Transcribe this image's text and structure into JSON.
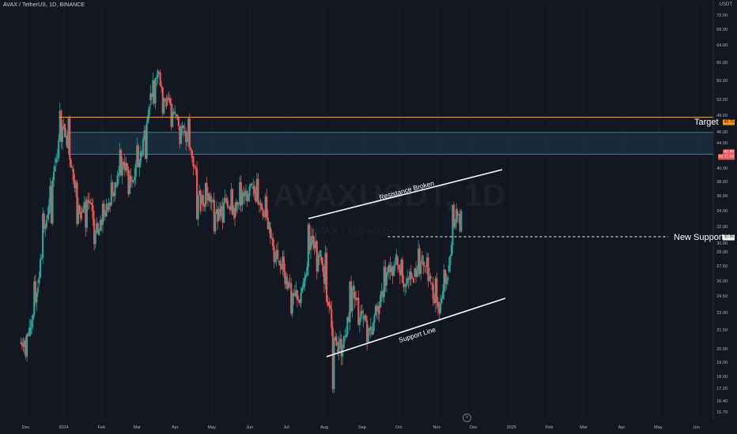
{
  "symbol_label": "AVAX / TetherUS, 1D, BINANCE",
  "currency_label": "USDT",
  "watermark": {
    "ticker": "AVAXUSDT, 1D",
    "name": "AVAX / TetherUS"
  },
  "annotations": {
    "target": "Target",
    "new_support": "New Support",
    "resistance": "Resistance Broken",
    "support_line": "Support Line"
  },
  "price_labels": {
    "target": "48.75",
    "current": "42.90",
    "countdown": "02:11:53",
    "support": "30.85"
  },
  "y_ticks": [
    "72.00",
    "68.00",
    "64.00",
    "60.00",
    "56.00",
    "52.00",
    "49.00",
    "46.00",
    "44.00",
    "40.00",
    "38.00",
    "36.00",
    "34.00",
    "32.00",
    "30.00",
    "29.00",
    "27.50",
    "26.00",
    "24.50",
    "23.00",
    "21.50",
    "20.00",
    "19.00",
    "18.00",
    "17.20",
    "16.40",
    "15.70"
  ],
  "x_ticks": [
    "Dec",
    "2024",
    "Feb",
    "Mar",
    "Apr",
    "May",
    "Jun",
    "Jul",
    "Aug",
    "Sep",
    "Oct",
    "Nov",
    "Dec",
    "2025",
    "Feb",
    "Mar",
    "Apr",
    "May",
    "Jun"
  ],
  "tz_icon": "timezone-icon",
  "colors": {
    "background": "#131722",
    "up": "#26a69a",
    "down": "#ef5350",
    "target_line": "#ff9800",
    "zone_fill": "#1f3a4d",
    "zone_border": "#5b8fa8"
  },
  "chart_data": {
    "type": "candlestick",
    "timeframe": "1D",
    "price_scale": "log",
    "ylim": [
      15.3,
      75
    ],
    "x_range": [
      "Dec 2023",
      "Jun 2025"
    ],
    "ohlc": [
      {
        "date": "2023-11-27",
        "o": 20.5,
        "h": 21.8,
        "l": 19.5,
        "c": 21.2
      },
      {
        "date": "2023-12-05",
        "o": 21.2,
        "h": 26.5,
        "l": 21.0,
        "c": 25.8
      },
      {
        "date": "2023-12-12",
        "o": 25.8,
        "h": 34.0,
        "l": 25.0,
        "c": 33.0
      },
      {
        "date": "2023-12-19",
        "o": 33.0,
        "h": 42.0,
        "l": 32.0,
        "c": 41.0
      },
      {
        "date": "2023-12-26",
        "o": 41.0,
        "h": 50.0,
        "l": 40.0,
        "c": 47.5
      },
      {
        "date": "2024-01-02",
        "o": 47.5,
        "h": 48.8,
        "l": 38.0,
        "c": 40.0
      },
      {
        "date": "2024-01-09",
        "o": 40.0,
        "h": 41.0,
        "l": 32.0,
        "c": 34.0
      },
      {
        "date": "2024-01-16",
        "o": 34.0,
        "h": 37.0,
        "l": 31.5,
        "c": 35.0
      },
      {
        "date": "2024-01-23",
        "o": 35.0,
        "h": 36.0,
        "l": 30.0,
        "c": 31.0
      },
      {
        "date": "2024-01-30",
        "o": 31.0,
        "h": 35.0,
        "l": 30.5,
        "c": 34.5
      },
      {
        "date": "2024-02-06",
        "o": 34.5,
        "h": 38.0,
        "l": 33.0,
        "c": 37.5
      },
      {
        "date": "2024-02-13",
        "o": 37.5,
        "h": 43.0,
        "l": 37.0,
        "c": 41.0
      },
      {
        "date": "2024-02-20",
        "o": 41.0,
        "h": 42.5,
        "l": 36.0,
        "c": 38.0
      },
      {
        "date": "2024-02-27",
        "o": 38.0,
        "h": 45.0,
        "l": 37.5,
        "c": 42.0
      },
      {
        "date": "2024-03-05",
        "o": 42.0,
        "h": 54.0,
        "l": 41.0,
        "c": 52.0
      },
      {
        "date": "2024-03-12",
        "o": 52.0,
        "h": 65.0,
        "l": 50.0,
        "c": 58.0
      },
      {
        "date": "2024-03-19",
        "o": 58.0,
        "h": 60.0,
        "l": 48.0,
        "c": 52.0
      },
      {
        "date": "2024-03-26",
        "o": 52.0,
        "h": 54.0,
        "l": 47.0,
        "c": 49.0
      },
      {
        "date": "2024-04-02",
        "o": 49.0,
        "h": 50.0,
        "l": 44.0,
        "c": 46.0
      },
      {
        "date": "2024-04-09",
        "o": 46.0,
        "h": 48.5,
        "l": 40.0,
        "c": 42.0
      },
      {
        "date": "2024-04-16",
        "o": 42.0,
        "h": 43.0,
        "l": 33.0,
        "c": 35.0
      },
      {
        "date": "2024-04-23",
        "o": 35.0,
        "h": 38.0,
        "l": 33.0,
        "c": 36.0
      },
      {
        "date": "2024-04-30",
        "o": 36.0,
        "h": 37.0,
        "l": 31.5,
        "c": 33.0
      },
      {
        "date": "2024-05-07",
        "o": 33.0,
        "h": 36.0,
        "l": 32.0,
        "c": 35.5
      },
      {
        "date": "2024-05-14",
        "o": 35.5,
        "h": 38.0,
        "l": 33.0,
        "c": 34.0
      },
      {
        "date": "2024-05-21",
        "o": 34.0,
        "h": 39.0,
        "l": 33.5,
        "c": 36.0
      },
      {
        "date": "2024-05-28",
        "o": 36.0,
        "h": 42.0,
        "l": 35.0,
        "c": 37.0
      },
      {
        "date": "2024-06-04",
        "o": 37.0,
        "h": 38.5,
        "l": 34.0,
        "c": 35.0
      },
      {
        "date": "2024-06-11",
        "o": 35.0,
        "h": 36.0,
        "l": 31.0,
        "c": 32.0
      },
      {
        "date": "2024-06-18",
        "o": 32.0,
        "h": 32.5,
        "l": 27.5,
        "c": 28.0
      },
      {
        "date": "2024-06-25",
        "o": 28.0,
        "h": 29.0,
        "l": 25.0,
        "c": 26.0
      },
      {
        "date": "2024-07-02",
        "o": 26.0,
        "h": 27.0,
        "l": 23.0,
        "c": 24.5
      },
      {
        "date": "2024-07-09",
        "o": 24.5,
        "h": 26.0,
        "l": 23.5,
        "c": 25.5
      },
      {
        "date": "2024-07-16",
        "o": 25.5,
        "h": 33.0,
        "l": 25.0,
        "c": 31.0
      },
      {
        "date": "2024-07-23",
        "o": 31.0,
        "h": 32.0,
        "l": 27.0,
        "c": 28.5
      },
      {
        "date": "2024-07-30",
        "o": 28.5,
        "h": 29.0,
        "l": 23.0,
        "c": 24.0
      },
      {
        "date": "2024-08-05",
        "o": 24.0,
        "h": 24.5,
        "l": 17.2,
        "c": 20.0
      },
      {
        "date": "2024-08-12",
        "o": 20.0,
        "h": 22.0,
        "l": 19.5,
        "c": 21.0
      },
      {
        "date": "2024-08-19",
        "o": 21.0,
        "h": 26.0,
        "l": 20.5,
        "c": 25.0
      },
      {
        "date": "2024-08-26",
        "o": 25.0,
        "h": 26.0,
        "l": 22.0,
        "c": 22.5
      },
      {
        "date": "2024-09-02",
        "o": 22.5,
        "h": 23.0,
        "l": 20.5,
        "c": 21.5
      },
      {
        "date": "2024-09-09",
        "o": 21.5,
        "h": 24.0,
        "l": 21.0,
        "c": 23.5
      },
      {
        "date": "2024-09-16",
        "o": 23.5,
        "h": 27.5,
        "l": 23.0,
        "c": 27.0
      },
      {
        "date": "2024-09-23",
        "o": 27.0,
        "h": 30.5,
        "l": 26.5,
        "c": 28.5
      },
      {
        "date": "2024-09-30",
        "o": 28.5,
        "h": 29.0,
        "l": 24.5,
        "c": 25.5
      },
      {
        "date": "2024-10-07",
        "o": 25.5,
        "h": 27.0,
        "l": 25.0,
        "c": 26.5
      },
      {
        "date": "2024-10-14",
        "o": 26.5,
        "h": 29.5,
        "l": 26.0,
        "c": 28.0
      },
      {
        "date": "2024-10-21",
        "o": 28.0,
        "h": 28.5,
        "l": 25.0,
        "c": 25.8
      },
      {
        "date": "2024-10-28",
        "o": 25.8,
        "h": 27.0,
        "l": 22.8,
        "c": 23.0
      },
      {
        "date": "2024-11-04",
        "o": 23.0,
        "h": 28.0,
        "l": 22.8,
        "c": 27.0
      },
      {
        "date": "2024-11-11",
        "o": 27.0,
        "h": 36.0,
        "l": 26.5,
        "c": 34.0
      },
      {
        "date": "2024-11-18",
        "o": 34.0,
        "h": 36.0,
        "l": 31.5,
        "c": 35.0
      },
      {
        "date": "2024-11-22",
        "o": 35.0,
        "h": 45.5,
        "l": 34.5,
        "c": 42.9
      }
    ],
    "levels": {
      "target": 48.75,
      "new_support": 30.85,
      "zone": [
        42.3,
        46.0
      ]
    }
  }
}
